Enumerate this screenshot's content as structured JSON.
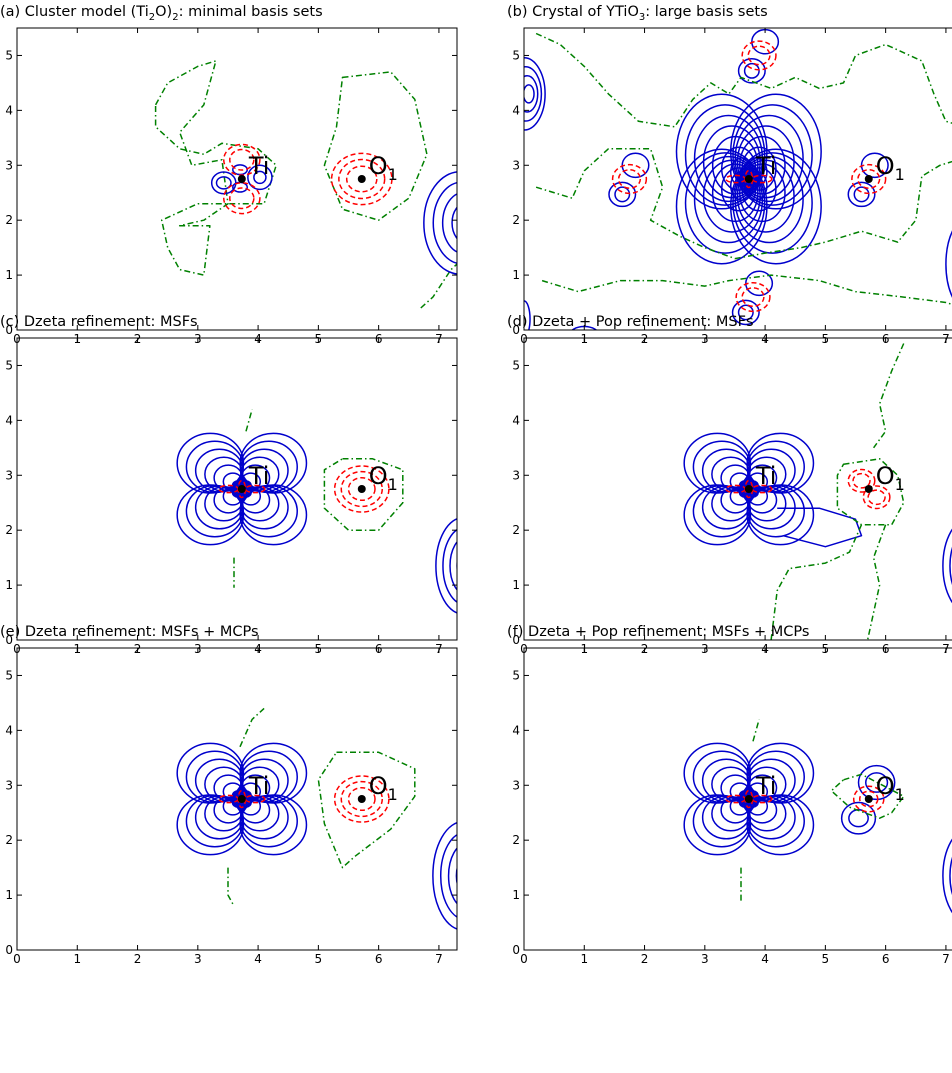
{
  "figure": {
    "panels": [
      {
        "id": "a",
        "title": "(a) Cluster model (Ti$_2$O)$_2$: minimal basis sets",
        "title_parts": [
          "(a) Cluster model (Ti",
          "2",
          "O)",
          "2",
          ": minimal basis sets"
        ],
        "atoms": [
          {
            "label": "Ti",
            "sub": "",
            "x": 3.73,
            "y": 2.75
          },
          {
            "label": "O",
            "sub": "1",
            "x": 5.72,
            "y": 2.75
          }
        ]
      },
      {
        "id": "b",
        "title": "(b) Crystal of YTiO$_3$: large basis sets",
        "title_parts": [
          "(b) Crystal of YTiO",
          "3",
          ": large basis sets"
        ],
        "atoms": [
          {
            "label": "Ti",
            "sub": "",
            "x": 3.73,
            "y": 2.75
          },
          {
            "label": "O",
            "sub": "1",
            "x": 5.72,
            "y": 2.75
          }
        ]
      },
      {
        "id": "c",
        "title": "(c) Dzeta refinement: MSFs",
        "title_parts": [
          "(c) Dzeta refinement: MSFs"
        ],
        "atoms": [
          {
            "label": "Ti",
            "sub": "",
            "x": 3.73,
            "y": 2.75
          },
          {
            "label": "O",
            "sub": "1",
            "x": 5.72,
            "y": 2.75
          }
        ]
      },
      {
        "id": "d",
        "title": "(d) Dzeta + Pop refinement: MSFs",
        "title_parts": [
          "(d) Dzeta + Pop refinement: MSFs"
        ],
        "atoms": [
          {
            "label": "Ti",
            "sub": "",
            "x": 3.73,
            "y": 2.75
          },
          {
            "label": "O",
            "sub": "1",
            "x": 5.72,
            "y": 2.75
          }
        ]
      },
      {
        "id": "e",
        "title": "(e) Dzeta refinement: MSFs + MCPs",
        "title_parts": [
          "(e) Dzeta refinement: MSFs + MCPs"
        ],
        "atoms": [
          {
            "label": "Ti",
            "sub": "",
            "x": 3.73,
            "y": 2.75
          },
          {
            "label": "O",
            "sub": "1",
            "x": 5.72,
            "y": 2.75
          }
        ]
      },
      {
        "id": "f",
        "title": "(f) Dzeta + Pop refinement: MSFs + MCPs",
        "title_parts": [
          "(f) Dzeta + Pop refinement: MSFs + MCPs"
        ],
        "atoms": [
          {
            "label": "Ti",
            "sub": "",
            "x": 3.73,
            "y": 2.75
          },
          {
            "label": "O",
            "sub": "1",
            "x": 5.72,
            "y": 2.75
          }
        ]
      }
    ]
  },
  "chart_data": [
    {
      "type": "contour",
      "panel": "a",
      "title": "(a) Cluster model (Ti2O)2: minimal basis sets",
      "xlim": [
        0,
        7.3
      ],
      "ylim": [
        0,
        5.5
      ],
      "xticks": [
        "0",
        "1",
        "2",
        "3",
        "4",
        "5",
        "6",
        "7"
      ],
      "yticks": [
        "0",
        "1",
        "2",
        "3",
        "4",
        "5"
      ],
      "contour_styles": {
        "positive": {
          "color": "#0000cc",
          "style": "solid"
        },
        "negative": {
          "color": "#ff0000",
          "style": "dashed"
        },
        "zero": {
          "color": "#008000",
          "style": "dash-dot"
        }
      },
      "points": [
        {
          "label": "Ti",
          "x": 3.73,
          "y": 2.75
        },
        {
          "label": "O1",
          "x": 5.72,
          "y": 2.75
        }
      ]
    },
    {
      "type": "contour",
      "panel": "b",
      "title": "(b) Crystal of YTiO3: large basis sets",
      "xlim": [
        0,
        7.3
      ],
      "ylim": [
        0,
        5.5
      ],
      "xticks": [
        "0",
        "1",
        "2",
        "3",
        "4",
        "5",
        "6",
        "7"
      ],
      "yticks": [
        "0",
        "1",
        "2",
        "3",
        "4",
        "5"
      ],
      "contour_styles": {
        "positive": {
          "color": "#0000cc",
          "style": "solid"
        },
        "negative": {
          "color": "#ff0000",
          "style": "dashed"
        },
        "zero": {
          "color": "#008000",
          "style": "dash-dot"
        }
      },
      "points": [
        {
          "label": "Ti",
          "x": 3.73,
          "y": 2.75
        },
        {
          "label": "O1",
          "x": 5.72,
          "y": 2.75
        }
      ]
    },
    {
      "type": "contour",
      "panel": "c",
      "title": "(c) Dzeta refinement: MSFs",
      "xlim": [
        0,
        7.3
      ],
      "ylim": [
        0,
        5.5
      ],
      "xticks": [
        "0",
        "1",
        "2",
        "3",
        "4",
        "5",
        "6",
        "7"
      ],
      "yticks": [
        "0",
        "1",
        "2",
        "3",
        "4",
        "5"
      ],
      "contour_styles": {
        "positive": {
          "color": "#0000cc",
          "style": "solid"
        },
        "negative": {
          "color": "#ff0000",
          "style": "dashed"
        },
        "zero": {
          "color": "#008000",
          "style": "dash-dot"
        }
      },
      "points": [
        {
          "label": "Ti",
          "x": 3.73,
          "y": 2.75
        },
        {
          "label": "O1",
          "x": 5.72,
          "y": 2.75
        }
      ]
    },
    {
      "type": "contour",
      "panel": "d",
      "title": "(d) Dzeta + Pop refinement: MSFs",
      "xlim": [
        0,
        7.3
      ],
      "ylim": [
        0,
        5.5
      ],
      "xticks": [
        "0",
        "1",
        "2",
        "3",
        "4",
        "5",
        "6",
        "7"
      ],
      "yticks": [
        "0",
        "1",
        "2",
        "3",
        "4",
        "5"
      ],
      "contour_styles": {
        "positive": {
          "color": "#0000cc",
          "style": "solid"
        },
        "negative": {
          "color": "#ff0000",
          "style": "dashed"
        },
        "zero": {
          "color": "#008000",
          "style": "dash-dot"
        }
      },
      "points": [
        {
          "label": "Ti",
          "x": 3.73,
          "y": 2.75
        },
        {
          "label": "O1",
          "x": 5.72,
          "y": 2.75
        }
      ]
    },
    {
      "type": "contour",
      "panel": "e",
      "title": "(e) Dzeta refinement: MSFs + MCPs",
      "xlim": [
        0,
        7.3
      ],
      "ylim": [
        0,
        5.5
      ],
      "xticks": [
        "0",
        "1",
        "2",
        "3",
        "4",
        "5",
        "6",
        "7"
      ],
      "yticks": [
        "0",
        "1",
        "2",
        "3",
        "4",
        "5"
      ],
      "contour_styles": {
        "positive": {
          "color": "#0000cc",
          "style": "solid"
        },
        "negative": {
          "color": "#ff0000",
          "style": "dashed"
        },
        "zero": {
          "color": "#008000",
          "style": "dash-dot"
        }
      },
      "points": [
        {
          "label": "Ti",
          "x": 3.73,
          "y": 2.75
        },
        {
          "label": "O1",
          "x": 5.72,
          "y": 2.75
        }
      ]
    },
    {
      "type": "contour",
      "panel": "f",
      "title": "(f) Dzeta + Pop refinement: MSFs + MCPs",
      "xlim": [
        0,
        7.3
      ],
      "ylim": [
        0,
        5.5
      ],
      "xticks": [
        "0",
        "1",
        "2",
        "3",
        "4",
        "5",
        "6",
        "7"
      ],
      "yticks": [
        "0",
        "1",
        "2",
        "3",
        "4",
        "5"
      ],
      "contour_styles": {
        "positive": {
          "color": "#0000cc",
          "style": "solid"
        },
        "negative": {
          "color": "#ff0000",
          "style": "dashed"
        },
        "zero": {
          "color": "#008000",
          "style": "dash-dot"
        }
      },
      "points": [
        {
          "label": "Ti",
          "x": 3.73,
          "y": 2.75
        },
        {
          "label": "O1",
          "x": 5.72,
          "y": 2.75
        }
      ]
    }
  ]
}
